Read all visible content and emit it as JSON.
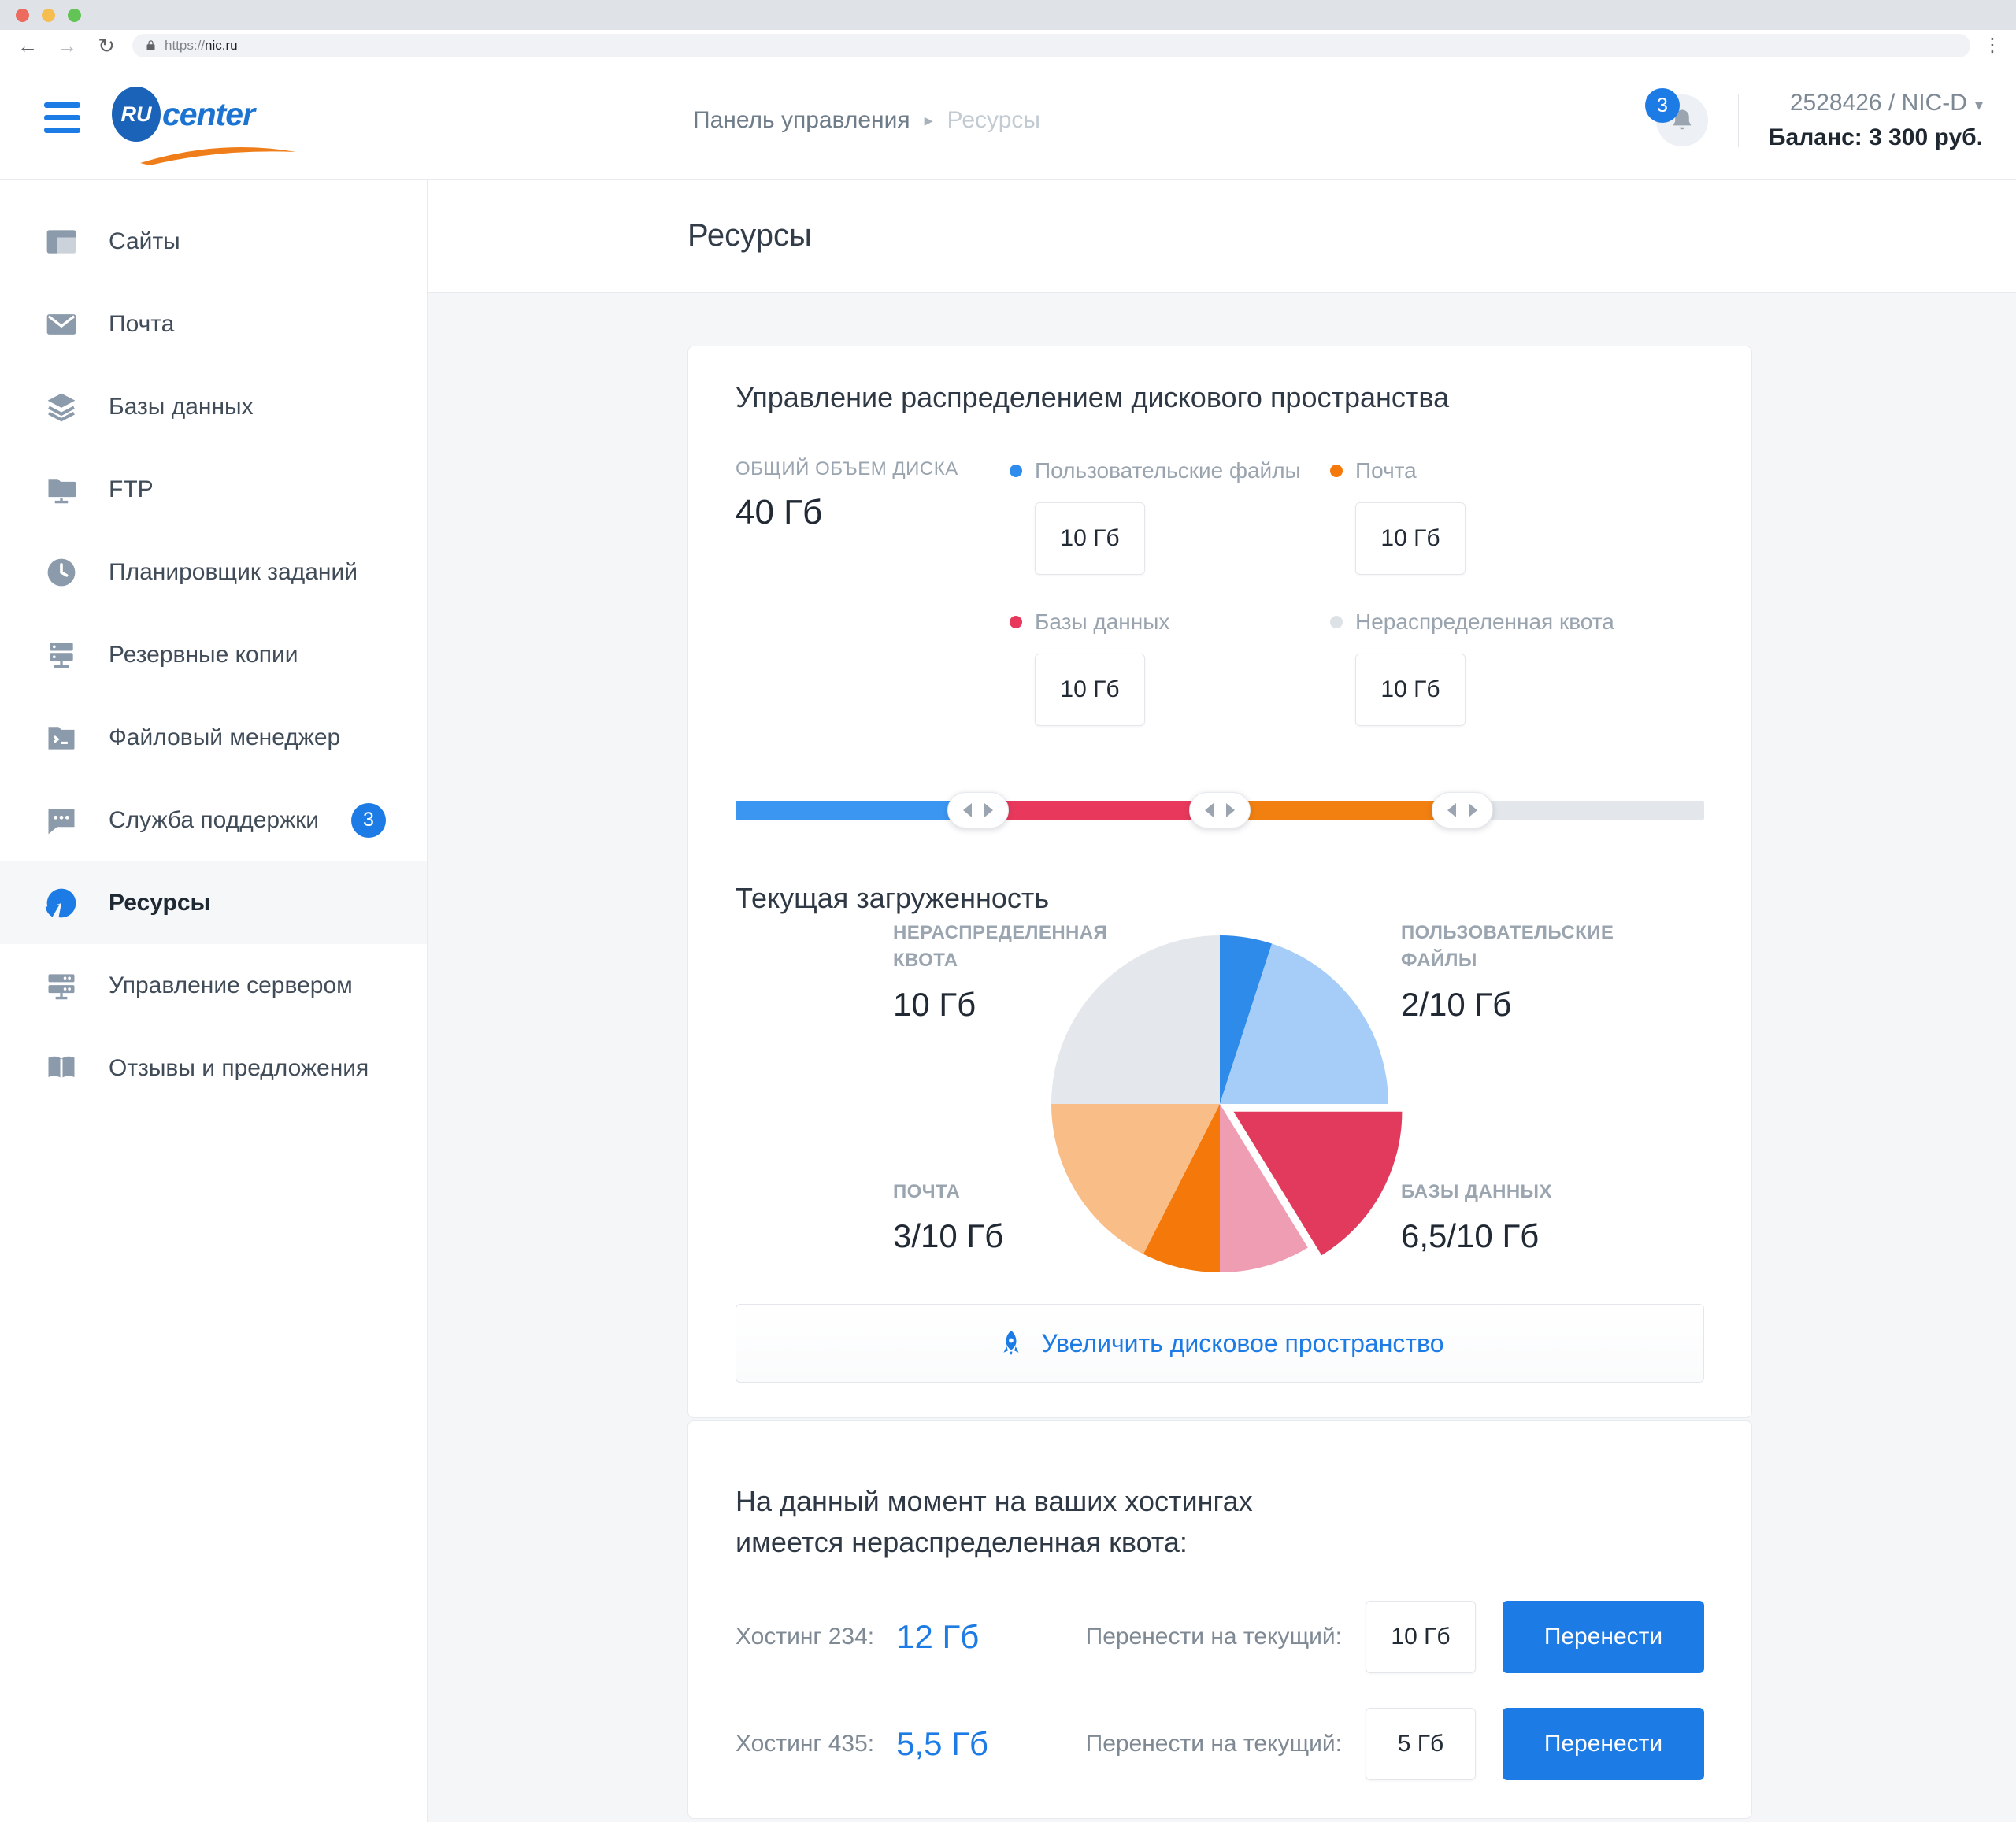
{
  "browser": {
    "url_scheme": "https://",
    "url_host": "nic.ru"
  },
  "header": {
    "logo": {
      "ru": "RU",
      "center": "center"
    },
    "breadcrumb": [
      "Панель управления",
      "Ресурсы"
    ],
    "notifications_count": "3",
    "account": "2528426 / NIC-D",
    "balance": "Баланс: 3 300 руб."
  },
  "sidebar": {
    "items": [
      {
        "id": "sites",
        "icon": "sites",
        "label": "Сайты"
      },
      {
        "id": "mail",
        "icon": "mail",
        "label": "Почта"
      },
      {
        "id": "databases",
        "icon": "databases",
        "label": "Базы данных"
      },
      {
        "id": "ftp",
        "icon": "ftp",
        "label": "FTP"
      },
      {
        "id": "scheduler",
        "icon": "scheduler",
        "label": "Планировщик заданий"
      },
      {
        "id": "backups",
        "icon": "backups",
        "label": "Резервные копии"
      },
      {
        "id": "file-manager",
        "icon": "file-manager",
        "label": "Файловый менеджер"
      },
      {
        "id": "support",
        "icon": "support",
        "label": "Служба поддержки",
        "badge": "3"
      },
      {
        "id": "resources",
        "icon": "resources",
        "label": "Ресурсы",
        "active": true
      },
      {
        "id": "server-management",
        "icon": "server-management",
        "label": "Управление сервером"
      },
      {
        "id": "feedback",
        "icon": "feedback",
        "label": "Отзывы и предложения"
      }
    ]
  },
  "page": {
    "title": "Ресурсы"
  },
  "allocation": {
    "title": "Управление распределением дискового пространства",
    "total_label": "ОБЩИЙ ОБЪЕМ ДИСКА",
    "total_value": "40 Гб",
    "quotas": [
      {
        "label": "Пользовательские файлы",
        "value": "10 Гб",
        "color": "#2F8CEC"
      },
      {
        "label": "Почта",
        "value": "10 Гб",
        "color": "#F5790A"
      },
      {
        "label": "Базы данных",
        "value": "10 Гб",
        "color": "#E8395C"
      },
      {
        "label": "Нераспределенная квота",
        "value": "10 Гб",
        "color": "#DDE2E7"
      }
    ],
    "slider": {
      "total": 40,
      "segments": [
        {
          "name": "Пользовательские файлы",
          "value": 10,
          "color": "#3B96F2"
        },
        {
          "name": "Базы данных",
          "value": 10,
          "color": "#E8395C"
        },
        {
          "name": "Почта",
          "value": 10,
          "color": "#F28010"
        },
        {
          "name": "Нераспределенная квота",
          "value": 10,
          "color": "#E3E7EB"
        }
      ]
    }
  },
  "chart_data": {
    "type": "pie",
    "title": "Текущая загруженность",
    "unit": "Гб",
    "total": 40,
    "legend_position": "corner-annotations",
    "slices": [
      {
        "label": "Пользовательские файлы — занято",
        "value": 2,
        "color": "#2E8BEA"
      },
      {
        "label": "Пользовательские файлы — свободно",
        "value": 8,
        "color": "#A5CDF8"
      },
      {
        "label": "Базы данных — занято",
        "value": 6.5,
        "color": "#E23A5C",
        "exploded": true
      },
      {
        "label": "Базы данных — свободно",
        "value": 3.5,
        "color": "#EF9DB3"
      },
      {
        "label": "Почта — занято",
        "value": 3,
        "color": "#F5790A"
      },
      {
        "label": "Почта — свободно",
        "value": 7,
        "color": "#F9BE88"
      },
      {
        "label": "Нераспределенная квота",
        "value": 10,
        "color": "#E4E8EC"
      }
    ],
    "annotations": [
      {
        "pos": "top-left",
        "label": "НЕРАСПРЕДЕЛЕННАЯ КВОТА",
        "value": "10 Гб"
      },
      {
        "pos": "top-right",
        "label": "ПОЛЬЗОВАТЕЛЬСКИЕ ФАЙЛЫ",
        "value": "2/10 Гб"
      },
      {
        "pos": "bottom-left",
        "label": "ПОЧТА",
        "value": "3/10 Гб"
      },
      {
        "pos": "bottom-right",
        "label": "БАЗЫ ДАННЫХ",
        "value": "6,5/10 Гб"
      }
    ]
  },
  "increase_button": {
    "label": "Увеличить дисковое пространство"
  },
  "transfer": {
    "heading_line1": "На данный момент на ваших хостингах",
    "heading_line2": "имеется нераспределенная квота:",
    "rows": [
      {
        "host": "Хостинг 234:",
        "available": "12 Гб",
        "transfer_label": "Перенести на текущий:",
        "input": "10 Гб",
        "button": "Перенести"
      },
      {
        "host": "Хостинг 435:",
        "available": "5,5 Гб",
        "transfer_label": "Перенести на текущий:",
        "input": "5 Гб",
        "button": "Перенести"
      }
    ]
  }
}
